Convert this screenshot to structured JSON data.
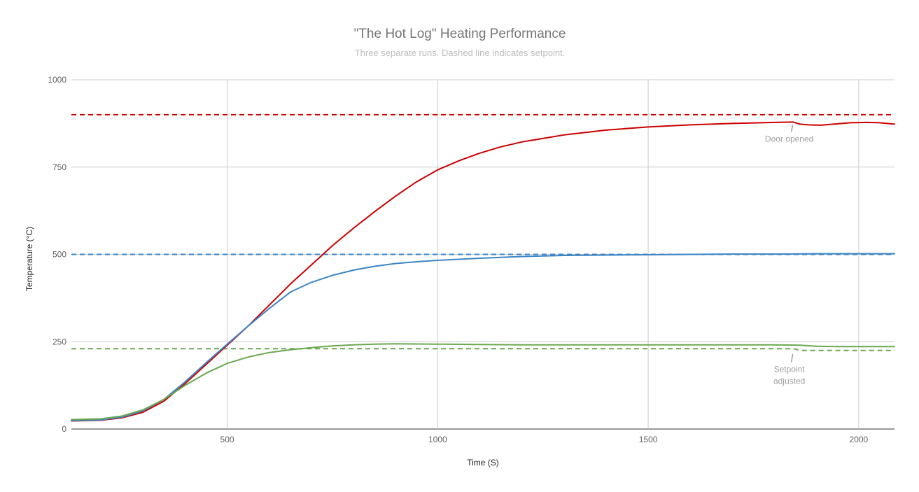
{
  "chart_data": {
    "type": "line",
    "title": "\"The Hot Log\" Heating Performance",
    "subtitle": "Three separate runs. Dashed line indicates setpoint.",
    "xlabel": "Time (S)",
    "ylabel": "Temperature (°C)",
    "xlim": [
      130,
      2085
    ],
    "ylim": [
      0,
      1000
    ],
    "x_ticks": [
      500,
      1000,
      1500,
      2000
    ],
    "y_ticks": [
      0,
      250,
      500,
      750,
      1000
    ],
    "grid": true,
    "legend": "none",
    "series": [
      {
        "color": "#cc0000",
        "style": "solid",
        "points": [
          [
            130,
            23
          ],
          [
            200,
            25
          ],
          [
            250,
            32
          ],
          [
            300,
            48
          ],
          [
            350,
            80
          ],
          [
            400,
            130
          ],
          [
            450,
            185
          ],
          [
            500,
            240
          ],
          [
            550,
            295
          ],
          [
            600,
            355
          ],
          [
            650,
            415
          ],
          [
            700,
            470
          ],
          [
            750,
            525
          ],
          [
            800,
            575
          ],
          [
            850,
            622
          ],
          [
            900,
            667
          ],
          [
            950,
            708
          ],
          [
            1000,
            742
          ],
          [
            1050,
            768
          ],
          [
            1100,
            790
          ],
          [
            1150,
            808
          ],
          [
            1200,
            822
          ],
          [
            1300,
            842
          ],
          [
            1400,
            856
          ],
          [
            1500,
            865
          ],
          [
            1600,
            871
          ],
          [
            1700,
            875
          ],
          [
            1800,
            878
          ],
          [
            1845,
            879
          ],
          [
            1860,
            873
          ],
          [
            1880,
            871
          ],
          [
            1910,
            870
          ],
          [
            1940,
            873
          ],
          [
            1980,
            877
          ],
          [
            2020,
            878
          ],
          [
            2050,
            877
          ],
          [
            2085,
            873
          ]
        ]
      },
      {
        "color": "#3d85c6",
        "style": "solid",
        "points": [
          [
            130,
            24
          ],
          [
            200,
            26
          ],
          [
            250,
            34
          ],
          [
            300,
            52
          ],
          [
            350,
            85
          ],
          [
            400,
            135
          ],
          [
            450,
            190
          ],
          [
            500,
            243
          ],
          [
            550,
            295
          ],
          [
            600,
            345
          ],
          [
            650,
            392
          ],
          [
            700,
            420
          ],
          [
            750,
            440
          ],
          [
            800,
            455
          ],
          [
            850,
            466
          ],
          [
            900,
            474
          ],
          [
            950,
            479
          ],
          [
            1000,
            483
          ],
          [
            1100,
            489
          ],
          [
            1200,
            494
          ],
          [
            1300,
            497
          ],
          [
            1400,
            498
          ],
          [
            1500,
            499
          ],
          [
            1600,
            500
          ],
          [
            1700,
            501
          ],
          [
            1800,
            501
          ],
          [
            1900,
            502
          ],
          [
            2000,
            502
          ],
          [
            2085,
            502
          ]
        ]
      },
      {
        "color": "#6aa84f",
        "style": "solid",
        "points": [
          [
            130,
            27
          ],
          [
            200,
            29
          ],
          [
            250,
            37
          ],
          [
            300,
            55
          ],
          [
            350,
            85
          ],
          [
            400,
            125
          ],
          [
            450,
            160
          ],
          [
            500,
            188
          ],
          [
            550,
            206
          ],
          [
            600,
            219
          ],
          [
            650,
            227
          ],
          [
            700,
            233
          ],
          [
            750,
            238
          ],
          [
            800,
            241
          ],
          [
            850,
            243
          ],
          [
            900,
            244
          ],
          [
            1000,
            243
          ],
          [
            1100,
            242
          ],
          [
            1200,
            241
          ],
          [
            1300,
            241
          ],
          [
            1400,
            241
          ],
          [
            1500,
            241
          ],
          [
            1600,
            241
          ],
          [
            1700,
            241
          ],
          [
            1800,
            241
          ],
          [
            1860,
            240
          ],
          [
            1900,
            237
          ],
          [
            1950,
            236
          ],
          [
            2000,
            236
          ],
          [
            2085,
            236
          ]
        ]
      },
      {
        "color": "#cc0000",
        "style": "dashed",
        "points": [
          [
            130,
            900
          ],
          [
            2085,
            900
          ]
        ]
      },
      {
        "color": "#3d85c6",
        "style": "dashed",
        "points": [
          [
            130,
            500
          ],
          [
            2085,
            500
          ]
        ]
      },
      {
        "color": "#6aa84f",
        "style": "dashed",
        "points": [
          [
            130,
            230
          ],
          [
            1845,
            230
          ],
          [
            1860,
            225
          ],
          [
            2085,
            225
          ]
        ]
      }
    ],
    "annotations": [
      {
        "lines": [
          "Door opened"
        ],
        "x": 1845,
        "y": 879
      },
      {
        "lines": [
          "Setpoint",
          "adjusted"
        ],
        "x": 1845,
        "y": 227
      }
    ]
  }
}
